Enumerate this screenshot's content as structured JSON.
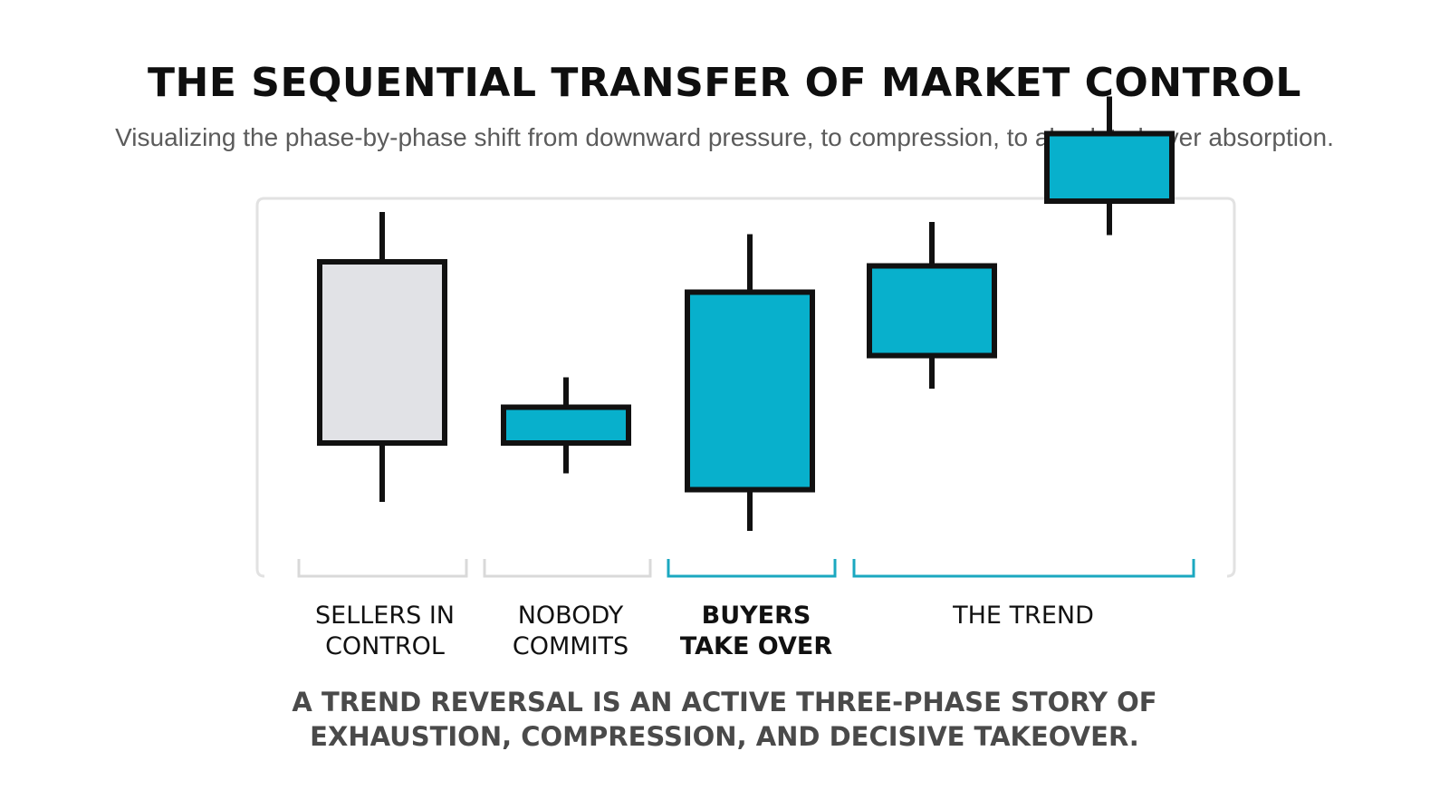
{
  "header": {
    "title": "THE SEQUENTIAL TRANSFER OF MARKET CONTROL",
    "subtitle": "Visualizing the phase-by-phase shift from downward pressure, to compression, to absolute buyer absorption."
  },
  "colors": {
    "bearish_fill": "#e1e2e6",
    "bullish_fill": "#08b0cc",
    "outline": "#111111",
    "frame": "#e2e2e2",
    "neutral_bracket": "#d9d9d9",
    "accent_bracket": "#1ba8c0"
  },
  "candles": [
    {
      "phase": "sellers",
      "direction": "bearish",
      "open": 46,
      "close": 6,
      "high": 57,
      "low": -7
    },
    {
      "phase": "nobody",
      "direction": "bullish",
      "open": 6,
      "close": 13.9,
      "high": 20.5,
      "low": -0.7
    },
    {
      "phase": "buyers",
      "direction": "bullish",
      "open": -4.3,
      "close": 39.3,
      "high": 52.1,
      "low": -13.4
    },
    {
      "phase": "trend",
      "direction": "bullish",
      "open": 25.3,
      "close": 45.1,
      "high": 54.8,
      "low": 18
    },
    {
      "phase": "trend",
      "direction": "bullish",
      "open": 59.4,
      "close": 74.3,
      "high": 82.5,
      "low": 51.9
    }
  ],
  "phases": [
    {
      "id": "sellers",
      "lines": [
        "SELLERS IN",
        "CONTROL"
      ],
      "emphasis": false,
      "bracket": "neutral"
    },
    {
      "id": "nobody",
      "lines": [
        "NOBODY",
        "COMMITS"
      ],
      "emphasis": false,
      "bracket": "neutral"
    },
    {
      "id": "buyers",
      "lines": [
        "BUYERS",
        "TAKE OVER"
      ],
      "emphasis": true,
      "bracket": "accent"
    },
    {
      "id": "trend",
      "lines": [
        "THE TREND"
      ],
      "emphasis": false,
      "bracket": "accent"
    }
  ],
  "takeaway": {
    "line1": "A TREND REVERSAL IS AN ACTIVE THREE-PHASE STORY OF",
    "line2": "EXHAUSTION, COMPRESSION, AND DECISIVE TAKEOVER."
  }
}
